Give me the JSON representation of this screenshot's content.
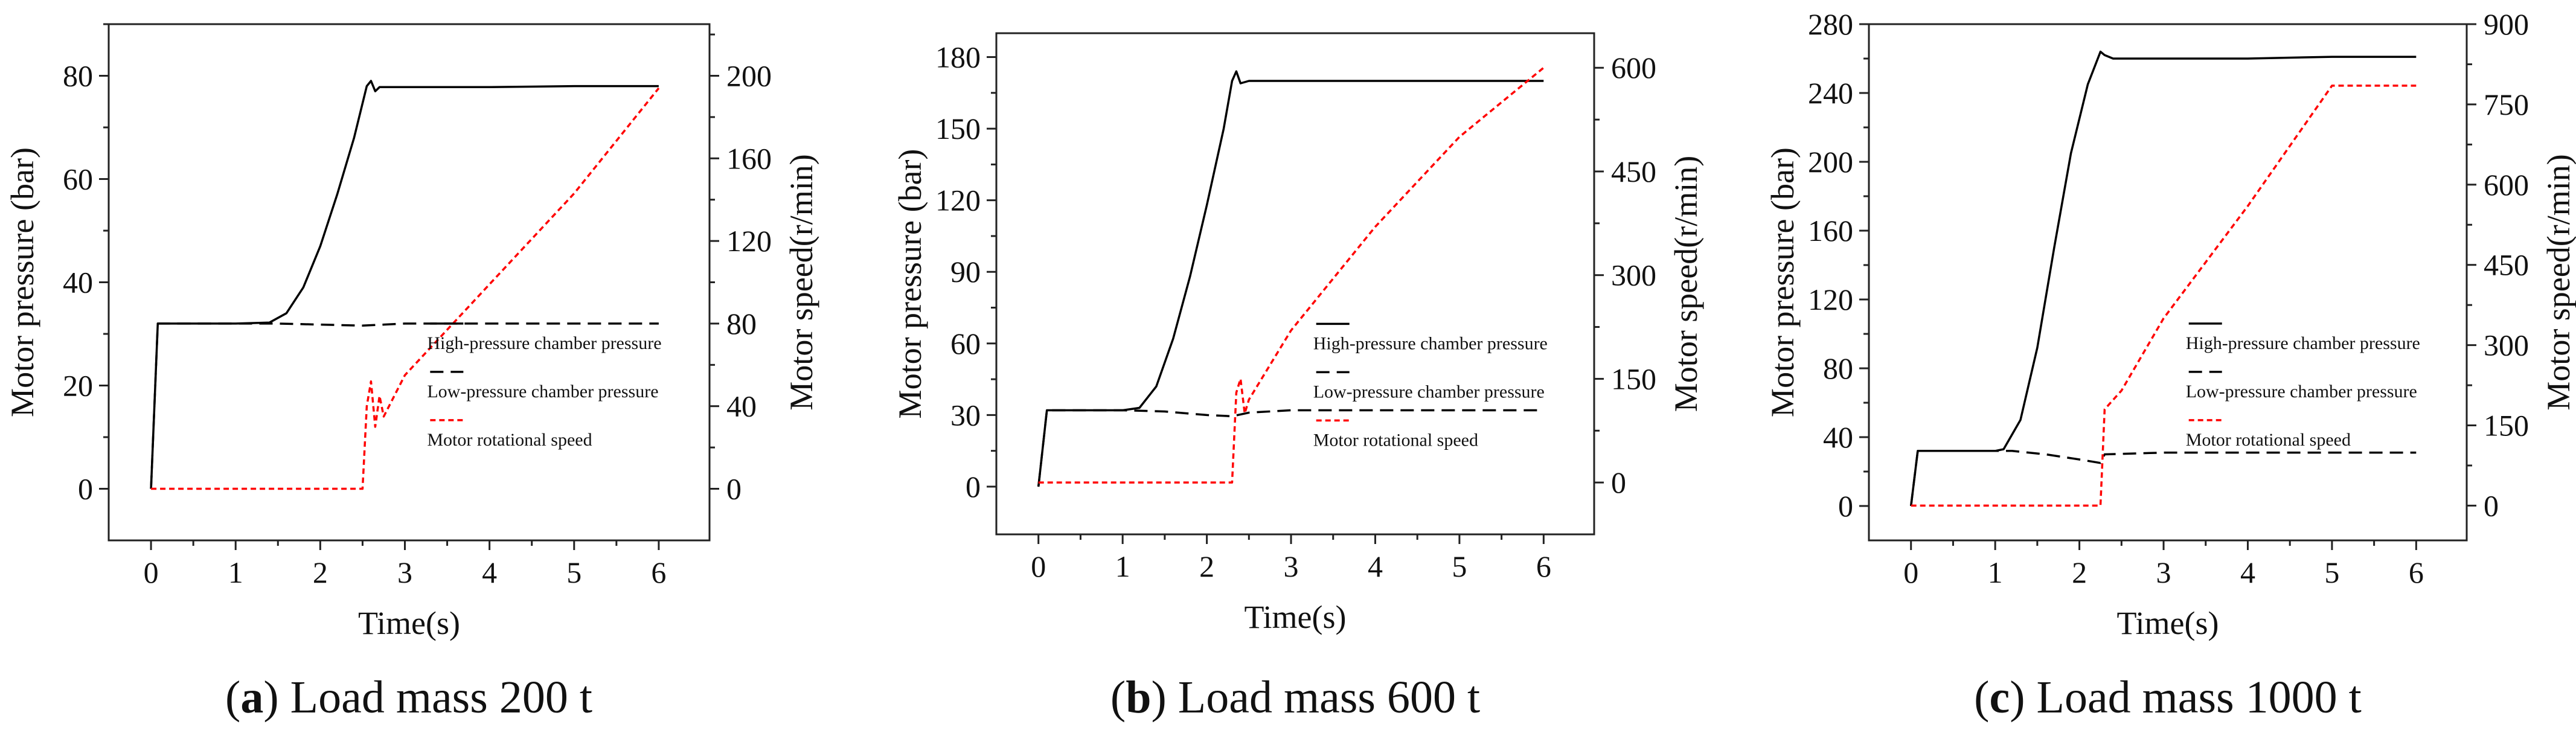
{
  "chart_data": [
    {
      "type": "line",
      "caption": {
        "letter": "a",
        "text": "Load mass 200 t"
      },
      "xlabel": "Time(s)",
      "ylabel": "Motor pressure (bar)",
      "y2label": "Motor speed(r/min)",
      "xlim": [
        -0.5,
        6.6
      ],
      "ylim": [
        -10,
        90
      ],
      "y2lim": [
        -25,
        225
      ],
      "xticks": [
        0,
        1,
        2,
        3,
        4,
        5,
        6
      ],
      "yticks": [
        0,
        20,
        40,
        60,
        80
      ],
      "y2ticks": [
        0,
        40,
        80,
        120,
        160,
        200
      ],
      "legend_position": "center-right",
      "series": [
        {
          "name": "High-pressure chamber pressure",
          "axis": "left",
          "style": "solid",
          "color": "#000000",
          "x": [
            0,
            0.08,
            0.12,
            0.5,
            1.0,
            1.4,
            1.6,
            1.8,
            2.0,
            2.2,
            2.4,
            2.55,
            2.6,
            2.65,
            2.7,
            3.0,
            4.0,
            5.0,
            6.0
          ],
          "y": [
            0,
            32,
            32,
            32,
            32,
            32.2,
            34,
            39,
            47,
            57,
            68,
            78,
            79,
            77,
            77.8,
            77.8,
            77.8,
            78,
            78
          ]
        },
        {
          "name": "Low-pressure chamber pressure",
          "axis": "left",
          "style": "dashed",
          "color": "#000000",
          "x": [
            0,
            0.08,
            0.12,
            1.0,
            1.5,
            2.0,
            2.5,
            3.0,
            4.0,
            5.0,
            6.0
          ],
          "y": [
            0,
            32,
            32,
            32,
            32,
            31.8,
            31.6,
            32,
            32,
            32,
            32
          ]
        },
        {
          "name": "Motor rotational speed",
          "axis": "right",
          "style": "dotted",
          "color": "#ff0000",
          "x": [
            0,
            1.0,
            2.0,
            2.5,
            2.55,
            2.6,
            2.65,
            2.7,
            2.75,
            3.0,
            4.0,
            5.0,
            6.0
          ],
          "y": [
            0,
            0,
            0,
            0,
            40,
            52,
            30,
            45,
            35,
            55,
            99,
            143,
            194
          ]
        }
      ]
    },
    {
      "type": "line",
      "caption": {
        "letter": "b",
        "text": "Load mass 600 t"
      },
      "xlabel": "Time(s)",
      "ylabel": "Motor pressure (bar)",
      "y2label": "Motor speed(r/min)",
      "xlim": [
        -0.5,
        6.6
      ],
      "ylim": [
        -20,
        190
      ],
      "y2lim": [
        -75,
        650
      ],
      "xticks": [
        0,
        1,
        2,
        3,
        4,
        5,
        6
      ],
      "yticks": [
        0,
        30,
        60,
        90,
        120,
        150,
        180
      ],
      "y2ticks": [
        0,
        150,
        300,
        450,
        600
      ],
      "legend_position": "center-right",
      "series": [
        {
          "name": "High-pressure chamber pressure",
          "axis": "left",
          "style": "solid",
          "color": "#000000",
          "x": [
            0,
            0.1,
            0.15,
            0.5,
            1.0,
            1.2,
            1.4,
            1.6,
            1.8,
            2.0,
            2.2,
            2.3,
            2.35,
            2.4,
            2.5,
            3.0,
            4.0,
            5.0,
            6.0
          ],
          "y": [
            0,
            32,
            32,
            32,
            32,
            33,
            42,
            62,
            88,
            118,
            150,
            170,
            174,
            169,
            170,
            170,
            170,
            170,
            170
          ]
        },
        {
          "name": "Low-pressure chamber pressure",
          "axis": "left",
          "style": "dashed",
          "color": "#000000",
          "x": [
            0,
            0.1,
            0.15,
            1.0,
            1.5,
            2.0,
            2.3,
            2.5,
            3.0,
            4.0,
            5.0,
            6.0
          ],
          "y": [
            0,
            32,
            32,
            32,
            31.5,
            30,
            29.5,
            31,
            32,
            32,
            32,
            32
          ]
        },
        {
          "name": "Motor rotational speed",
          "axis": "right",
          "style": "dotted",
          "color": "#ff0000",
          "x": [
            0,
            1.0,
            2.0,
            2.3,
            2.35,
            2.4,
            2.45,
            2.5,
            3.0,
            4.0,
            5.0,
            6.0
          ],
          "y": [
            0,
            0,
            0,
            0,
            130,
            150,
            100,
            120,
            220,
            370,
            500,
            600
          ]
        }
      ]
    },
    {
      "type": "line",
      "caption": {
        "letter": "c",
        "text": "Load mass 1000 t"
      },
      "xlabel": "Time(s)",
      "ylabel": "Motor pressure (bar)",
      "y2label": "Motor speed(r/min)",
      "xlim": [
        -0.5,
        6.6
      ],
      "ylim": [
        -20,
        280
      ],
      "y2lim": [
        -65,
        900
      ],
      "xticks": [
        0,
        1,
        2,
        3,
        4,
        5,
        6
      ],
      "yticks": [
        0,
        40,
        80,
        120,
        160,
        200,
        240,
        280
      ],
      "y2ticks": [
        0,
        150,
        300,
        450,
        600,
        750,
        900
      ],
      "legend_position": "center-right",
      "series": [
        {
          "name": "High-pressure chamber pressure",
          "axis": "left",
          "style": "solid",
          "color": "#000000",
          "x": [
            0,
            0.08,
            0.12,
            0.5,
            1.0,
            1.1,
            1.3,
            1.5,
            1.7,
            1.9,
            2.1,
            2.25,
            2.3,
            2.4,
            3.0,
            4.0,
            5.0,
            6.0
          ],
          "y": [
            0,
            32,
            32,
            32,
            32,
            33,
            50,
            92,
            150,
            205,
            245,
            264,
            262,
            260,
            260,
            260,
            261,
            261
          ]
        },
        {
          "name": "Low-pressure chamber pressure",
          "axis": "left",
          "style": "dashed",
          "color": "#000000",
          "x": [
            0,
            0.08,
            0.12,
            1.0,
            1.2,
            1.6,
            2.0,
            2.25,
            2.3,
            3.0,
            4.0,
            5.0,
            6.0
          ],
          "y": [
            0,
            32,
            32,
            32,
            32,
            30,
            27,
            25,
            30,
            31,
            31,
            31,
            31
          ]
        },
        {
          "name": "Motor rotational speed",
          "axis": "right",
          "style": "dotted",
          "color": "#ff0000",
          "x": [
            0,
            1.0,
            2.0,
            2.25,
            2.3,
            2.5,
            3.0,
            4.0,
            5.0,
            5.05,
            6.0
          ],
          "y": [
            0,
            0,
            0,
            0,
            180,
            215,
            350,
            560,
            785,
            785,
            785
          ]
        }
      ]
    }
  ]
}
